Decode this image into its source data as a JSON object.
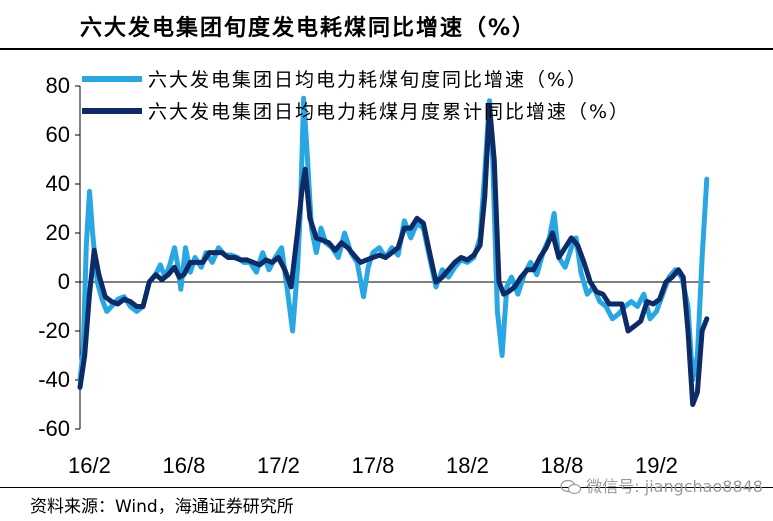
{
  "title": "六大发电集团旬度发电耗煤同比增速（%）",
  "source": "资料来源：Wind，海通证券研究所",
  "watermark": "微信号: jiangchao8848",
  "chart_data": {
    "type": "line",
    "title": "六大发电集团旬度发电耗煤同比增速（%）",
    "xlabel": "",
    "ylabel": "",
    "ylim": [
      -60,
      80
    ],
    "yticks": [
      80,
      60,
      40,
      20,
      0,
      -20,
      -40,
      -60
    ],
    "xticks": [
      "16/2",
      "16/8",
      "17/2",
      "17/8",
      "18/2",
      "18/8",
      "19/2"
    ],
    "legend": "top-left",
    "grid": false,
    "series": [
      {
        "name": "六大发电集团日均电力耗煤旬度同比增速（%）",
        "color": "#2aa6e2",
        "points": [
          [
            0.0,
            -40
          ],
          [
            0.1,
            -28
          ],
          [
            0.2,
            15
          ],
          [
            0.3,
            37
          ],
          [
            0.4,
            20
          ],
          [
            0.55,
            0
          ],
          [
            0.7,
            -7
          ],
          [
            0.85,
            -12
          ],
          [
            1.0,
            -10
          ],
          [
            1.2,
            -7
          ],
          [
            1.4,
            -6
          ],
          [
            1.6,
            -10
          ],
          [
            1.8,
            -12
          ],
          [
            2.0,
            -10
          ],
          [
            2.2,
            0
          ],
          [
            2.4,
            3
          ],
          [
            2.55,
            7
          ],
          [
            2.7,
            2
          ],
          [
            2.85,
            7
          ],
          [
            3.0,
            14
          ],
          [
            3.1,
            7
          ],
          [
            3.2,
            -3
          ],
          [
            3.35,
            14
          ],
          [
            3.5,
            4
          ],
          [
            3.65,
            10
          ],
          [
            3.85,
            6
          ],
          [
            4.0,
            12
          ],
          [
            4.2,
            8
          ],
          [
            4.4,
            14
          ],
          [
            4.6,
            11
          ],
          [
            4.8,
            11
          ],
          [
            5.0,
            10
          ],
          [
            5.2,
            8
          ],
          [
            5.4,
            8
          ],
          [
            5.6,
            4
          ],
          [
            5.8,
            12
          ],
          [
            6.0,
            5
          ],
          [
            6.2,
            10
          ],
          [
            6.4,
            14
          ],
          [
            6.6,
            -5
          ],
          [
            6.75,
            -20
          ],
          [
            6.9,
            5
          ],
          [
            7.0,
            30
          ],
          [
            7.1,
            75
          ],
          [
            7.2,
            55
          ],
          [
            7.35,
            22
          ],
          [
            7.5,
            12
          ],
          [
            7.65,
            22
          ],
          [
            7.8,
            16
          ],
          [
            8.0,
            14
          ],
          [
            8.2,
            10
          ],
          [
            8.4,
            20
          ],
          [
            8.6,
            12
          ],
          [
            8.8,
            8
          ],
          [
            9.0,
            -6
          ],
          [
            9.15,
            6
          ],
          [
            9.3,
            12
          ],
          [
            9.5,
            14
          ],
          [
            9.7,
            10
          ],
          [
            9.9,
            14
          ],
          [
            10.1,
            11
          ],
          [
            10.3,
            25
          ],
          [
            10.5,
            18
          ],
          [
            10.7,
            24
          ],
          [
            10.9,
            22
          ],
          [
            11.1,
            10
          ],
          [
            11.3,
            -2
          ],
          [
            11.5,
            5
          ],
          [
            11.7,
            2
          ],
          [
            11.9,
            6
          ],
          [
            12.1,
            9
          ],
          [
            12.3,
            8
          ],
          [
            12.5,
            10
          ],
          [
            12.7,
            18
          ],
          [
            12.85,
            45
          ],
          [
            13.0,
            74
          ],
          [
            13.1,
            50
          ],
          [
            13.25,
            -12
          ],
          [
            13.4,
            -30
          ],
          [
            13.55,
            -2
          ],
          [
            13.7,
            2
          ],
          [
            13.9,
            -5
          ],
          [
            14.1,
            3
          ],
          [
            14.3,
            8
          ],
          [
            14.5,
            3
          ],
          [
            14.7,
            12
          ],
          [
            14.9,
            18
          ],
          [
            15.05,
            28
          ],
          [
            15.2,
            10
          ],
          [
            15.4,
            6
          ],
          [
            15.6,
            14
          ],
          [
            15.75,
            18
          ],
          [
            15.9,
            4
          ],
          [
            16.1,
            -5
          ],
          [
            16.3,
            -2
          ],
          [
            16.5,
            -8
          ],
          [
            16.7,
            -10
          ],
          [
            16.9,
            -15
          ],
          [
            17.1,
            -13
          ],
          [
            17.3,
            -10
          ],
          [
            17.5,
            -8
          ],
          [
            17.7,
            -10
          ],
          [
            17.9,
            -5
          ],
          [
            18.1,
            -15
          ],
          [
            18.3,
            -12
          ],
          [
            18.5,
            -5
          ],
          [
            18.7,
            2
          ],
          [
            18.9,
            5
          ],
          [
            19.1,
            2
          ],
          [
            19.3,
            -10
          ],
          [
            19.45,
            -40
          ],
          [
            19.6,
            -30
          ],
          [
            19.75,
            10
          ],
          [
            19.9,
            42
          ]
        ]
      },
      {
        "name": "六大发电集团日均电力耗煤月度累计同比增速（%）",
        "color": "#0d2b66",
        "points": [
          [
            0.0,
            -43
          ],
          [
            0.15,
            -30
          ],
          [
            0.3,
            -5
          ],
          [
            0.45,
            13
          ],
          [
            0.6,
            3
          ],
          [
            0.8,
            -6
          ],
          [
            1.0,
            -8
          ],
          [
            1.2,
            -9
          ],
          [
            1.4,
            -7
          ],
          [
            1.6,
            -8
          ],
          [
            1.8,
            -10
          ],
          [
            2.0,
            -10
          ],
          [
            2.2,
            0
          ],
          [
            2.4,
            3
          ],
          [
            2.6,
            1
          ],
          [
            2.8,
            3
          ],
          [
            3.0,
            6
          ],
          [
            3.15,
            2
          ],
          [
            3.3,
            3
          ],
          [
            3.5,
            8
          ],
          [
            3.7,
            8
          ],
          [
            3.9,
            8
          ],
          [
            4.1,
            12
          ],
          [
            4.3,
            12
          ],
          [
            4.5,
            12
          ],
          [
            4.7,
            10
          ],
          [
            4.9,
            10
          ],
          [
            5.1,
            9
          ],
          [
            5.3,
            9
          ],
          [
            5.5,
            8
          ],
          [
            5.7,
            7
          ],
          [
            5.9,
            9
          ],
          [
            6.1,
            8
          ],
          [
            6.3,
            10
          ],
          [
            6.5,
            5
          ],
          [
            6.7,
            -2
          ],
          [
            6.9,
            20
          ],
          [
            7.05,
            38
          ],
          [
            7.15,
            46
          ],
          [
            7.3,
            26
          ],
          [
            7.5,
            18
          ],
          [
            7.7,
            17
          ],
          [
            7.9,
            16
          ],
          [
            8.1,
            13
          ],
          [
            8.3,
            16
          ],
          [
            8.5,
            14
          ],
          [
            8.7,
            11
          ],
          [
            8.9,
            8
          ],
          [
            9.1,
            9
          ],
          [
            9.3,
            10
          ],
          [
            9.5,
            11
          ],
          [
            9.7,
            10
          ],
          [
            9.9,
            12
          ],
          [
            10.1,
            14
          ],
          [
            10.3,
            22
          ],
          [
            10.5,
            22
          ],
          [
            10.7,
            26
          ],
          [
            10.9,
            24
          ],
          [
            11.1,
            12
          ],
          [
            11.3,
            0
          ],
          [
            11.5,
            2
          ],
          [
            11.7,
            5
          ],
          [
            11.9,
            8
          ],
          [
            12.1,
            10
          ],
          [
            12.3,
            9
          ],
          [
            12.5,
            11
          ],
          [
            12.7,
            15
          ],
          [
            12.85,
            35
          ],
          [
            13.0,
            72
          ],
          [
            13.15,
            50
          ],
          [
            13.3,
            0
          ],
          [
            13.45,
            -5
          ],
          [
            13.6,
            -4
          ],
          [
            13.8,
            -2
          ],
          [
            14.0,
            2
          ],
          [
            14.2,
            5
          ],
          [
            14.4,
            5
          ],
          [
            14.6,
            10
          ],
          [
            14.8,
            14
          ],
          [
            15.0,
            20
          ],
          [
            15.2,
            10
          ],
          [
            15.4,
            14
          ],
          [
            15.6,
            18
          ],
          [
            15.8,
            15
          ],
          [
            16.0,
            8
          ],
          [
            16.2,
            0
          ],
          [
            16.4,
            -4
          ],
          [
            16.6,
            -5
          ],
          [
            16.8,
            -9
          ],
          [
            17.0,
            -9
          ],
          [
            17.2,
            -9
          ],
          [
            17.4,
            -20
          ],
          [
            17.6,
            -18
          ],
          [
            17.8,
            -16
          ],
          [
            18.0,
            -8
          ],
          [
            18.2,
            -9
          ],
          [
            18.4,
            -7
          ],
          [
            18.6,
            0
          ],
          [
            18.8,
            2
          ],
          [
            19.0,
            5
          ],
          [
            19.15,
            2
          ],
          [
            19.3,
            -20
          ],
          [
            19.45,
            -50
          ],
          [
            19.6,
            -45
          ],
          [
            19.75,
            -20
          ],
          [
            19.9,
            -15
          ]
        ]
      }
    ]
  }
}
